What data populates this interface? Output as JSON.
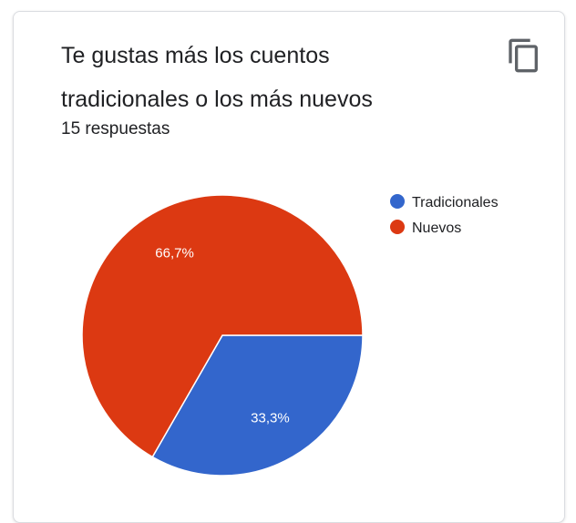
{
  "card": {
    "title": "Te gustas más los cuentos tradicionales o los más nuevos",
    "responses": "15 respuestas",
    "copy_icon": "copy-icon"
  },
  "chart_data": {
    "type": "pie",
    "categories": [
      "Tradicionales",
      "Nuevos"
    ],
    "values": [
      33.3,
      66.7
    ],
    "labels": [
      "33,3%",
      "66,7%"
    ],
    "colors": [
      "#3366cc",
      "#dc3912"
    ],
    "legend_position": "right"
  }
}
